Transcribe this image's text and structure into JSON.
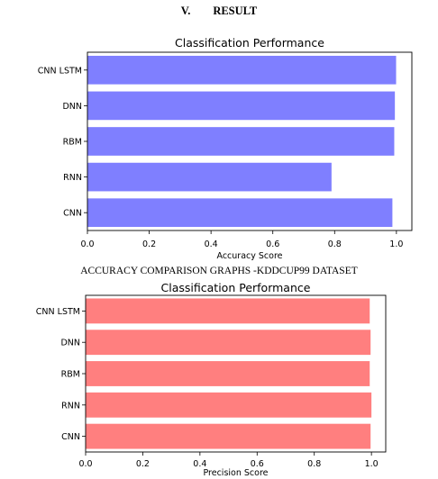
{
  "section_heading": "V.  RESULT",
  "caption": "ACCURACY COMPARISON GRAPHS -KDDCUP99 DATASET",
  "chart_data": [
    {
      "type": "bar",
      "orientation": "horizontal",
      "title": "Classification Performance",
      "xlabel": "Accuracy Score",
      "ylabel": "",
      "categories": [
        "CNN LSTM",
        "DNN",
        "RBM",
        "RNN",
        "CNN"
      ],
      "values": [
        0.999,
        0.995,
        0.993,
        0.79,
        0.987
      ],
      "xlim": [
        0,
        1.05
      ],
      "xticks": [
        "0.0",
        "0.2",
        "0.4",
        "0.6",
        "0.8",
        "1.0"
      ],
      "bar_color": "#7f7fff",
      "grid": false
    },
    {
      "type": "bar",
      "orientation": "horizontal",
      "title": "Classification Performance",
      "xlabel": "Precision Score",
      "ylabel": "",
      "categories": [
        "CNN LSTM",
        "DNN",
        "RBM",
        "RNN",
        "CNN"
      ],
      "values": [
        0.994,
        0.997,
        0.994,
        1.0,
        0.997
      ],
      "xlim": [
        0,
        1.05
      ],
      "xticks": [
        "0.0",
        "0.2",
        "0.4",
        "0.6",
        "0.8",
        "1.0"
      ],
      "bar_color": "#ff7f7f",
      "grid": false
    }
  ]
}
